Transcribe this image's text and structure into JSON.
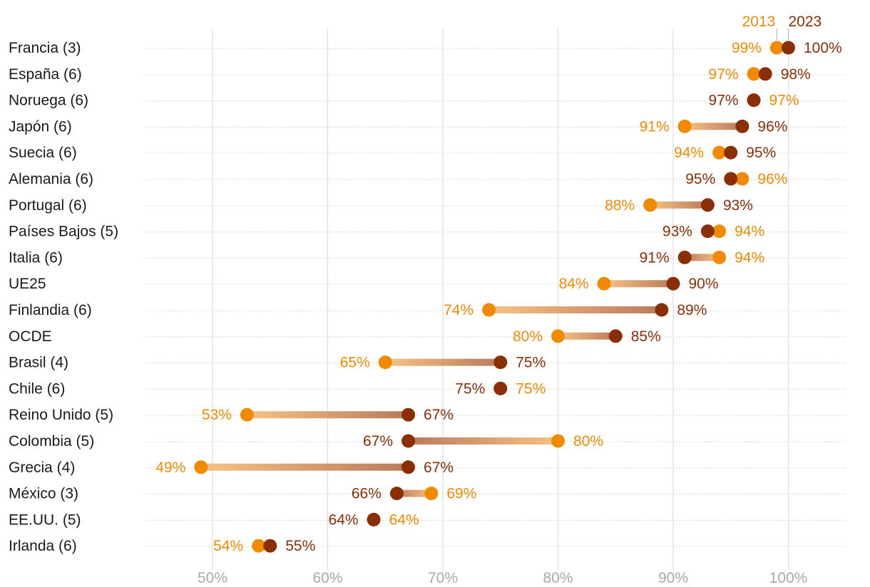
{
  "chart_data": {
    "type": "dumbbell",
    "series": [
      {
        "name": "2013",
        "color": "#f28a00"
      },
      {
        "name": "2023",
        "color": "#8a2e05"
      }
    ],
    "xlim": [
      44,
      105
    ],
    "x_ticks": [
      50,
      60,
      70,
      80,
      90,
      100
    ],
    "tick_suffix": "%",
    "grid": true,
    "legend_position": "top-right",
    "rows": [
      {
        "label": "Francia (3)",
        "v2013": 99,
        "v2023": 100,
        "t2013": "99%",
        "t2023": "100%"
      },
      {
        "label": "España (6)",
        "v2013": 97,
        "v2023": 98,
        "t2013": "97%",
        "t2023": "98%"
      },
      {
        "label": "Noruega (6)",
        "v2013": 97,
        "v2023": 97,
        "t2013": "97%",
        "t2023": "97%"
      },
      {
        "label": "Japón (6)",
        "v2013": 91,
        "v2023": 96,
        "t2013": "91%",
        "t2023": "96%"
      },
      {
        "label": "Suecia (6)",
        "v2013": 94,
        "v2023": 95,
        "t2013": "94%",
        "t2023": "95%"
      },
      {
        "label": "Alemania (6)",
        "v2013": 96,
        "v2023": 95,
        "t2013": "96%",
        "t2023": "95%"
      },
      {
        "label": "Portugal (6)",
        "v2013": 88,
        "v2023": 93,
        "t2013": "88%",
        "t2023": "93%"
      },
      {
        "label": "Países Bajos (5)",
        "v2013": 94,
        "v2023": 93,
        "t2013": "94%",
        "t2023": "93%"
      },
      {
        "label": "Italia (6)",
        "v2013": 94,
        "v2023": 91,
        "t2013": "94%",
        "t2023": "91%"
      },
      {
        "label": "UE25",
        "v2013": 84,
        "v2023": 90,
        "t2013": "84%",
        "t2023": "90%"
      },
      {
        "label": "Finlandia (6)",
        "v2013": 74,
        "v2023": 89,
        "t2013": "74%",
        "t2023": "89%"
      },
      {
        "label": "OCDE",
        "v2013": 80,
        "v2023": 85,
        "t2013": "80%",
        "t2023": "85%"
      },
      {
        "label": "Brasil (4)",
        "v2013": 65,
        "v2023": 75,
        "t2013": "65%",
        "t2023": "75%"
      },
      {
        "label": "Chile (6)",
        "v2013": 75,
        "v2023": 75,
        "t2013": "75%",
        "t2023": "75%"
      },
      {
        "label": "Reino Unido (5)",
        "v2013": 53,
        "v2023": 67,
        "t2013": "53%",
        "t2023": "67%"
      },
      {
        "label": "Colombia (5)",
        "v2013": 80,
        "v2023": 67,
        "t2013": "80%",
        "t2023": "67%"
      },
      {
        "label": "Grecia (4)",
        "v2013": 49,
        "v2023": 67,
        "t2013": "49%",
        "t2023": "67%"
      },
      {
        "label": "México (3)",
        "v2013": 69,
        "v2023": 66,
        "t2013": "69%",
        "t2023": "66%"
      },
      {
        "label": "EE.UU. (5)",
        "v2013": 64,
        "v2023": 64,
        "t2013": "64%",
        "t2023": "64%"
      },
      {
        "label": "Irlanda (6)",
        "v2013": 54,
        "v2023": 55,
        "t2013": "54%",
        "t2023": "55%"
      }
    ]
  }
}
